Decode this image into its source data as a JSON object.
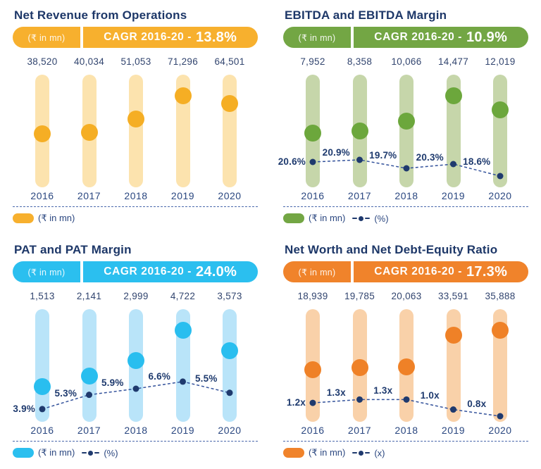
{
  "chart_data": [
    {
      "type": "bar",
      "title": "Net Revenue from Operations",
      "unit_label": "(₹ in mn)",
      "cagr_label": "CAGR 2016-20 -",
      "cagr_value": "13.8%",
      "categories": [
        "2016",
        "2017",
        "2018",
        "2019",
        "2020"
      ],
      "values": [
        38520,
        40034,
        51053,
        71296,
        64501
      ],
      "value_labels": [
        "38,520",
        "40,034",
        "51,053",
        "71,296",
        "64,501"
      ],
      "ylim": [
        0,
        82000
      ],
      "grid": false,
      "legend_position": "bottom-left",
      "line": null,
      "legend": [
        {
          "marker": "pill",
          "label": "(₹ in mn)"
        }
      ],
      "colors": {
        "accent": "#F7B02E",
        "bar": "#FCE3AE",
        "dot": "#F5AE24"
      }
    },
    {
      "type": "bar",
      "title": "EBITDA and EBITDA Margin",
      "unit_label": "(₹ in mn)",
      "cagr_label": "CAGR 2016-20 -",
      "cagr_value": "10.9%",
      "categories": [
        "2016",
        "2017",
        "2018",
        "2019",
        "2020"
      ],
      "values": [
        7952,
        8358,
        10066,
        14477,
        12019
      ],
      "value_labels": [
        "7,952",
        "8,358",
        "10,066",
        "14,477",
        "12,019"
      ],
      "ylim": [
        0,
        16650
      ],
      "grid": false,
      "legend_position": "bottom-left",
      "line": {
        "name": "EBITDA Margin",
        "values": [
          20.6,
          20.9,
          19.7,
          20.3,
          18.6
        ],
        "labels": [
          "20.6%",
          "20.9%",
          "19.7%",
          "20.3%",
          "18.6%"
        ],
        "ylim": [
          17.8,
          23.0
        ]
      },
      "legend": [
        {
          "marker": "pill",
          "label": "(₹ in mn)"
        },
        {
          "marker": "line",
          "label": "(%)"
        }
      ],
      "colors": {
        "accent": "#73A644",
        "bar": "#C6D6AA",
        "dot": "#6CA73C"
      }
    },
    {
      "type": "bar",
      "title": "PAT and PAT Margin",
      "unit_label": "(₹ in mn)",
      "cagr_label": "CAGR 2016-20 -",
      "cagr_value": "24.0%",
      "categories": [
        "2016",
        "2017",
        "2018",
        "2019",
        "2020"
      ],
      "values": [
        1513,
        2141,
        2999,
        4722,
        3573
      ],
      "value_labels": [
        "1,513",
        "2,141",
        "2,999",
        "4,722",
        "3,573"
      ],
      "ylim": [
        0,
        5450
      ],
      "grid": false,
      "legend_position": "bottom-left",
      "line": {
        "name": "PAT Margin",
        "values": [
          3.9,
          5.3,
          5.9,
          6.6,
          5.5
        ],
        "labels": [
          "3.9%",
          "5.3%",
          "5.9%",
          "6.6%",
          "5.5%"
        ],
        "ylim": [
          3.2,
          6.8
        ]
      },
      "legend": [
        {
          "marker": "pill",
          "label": "(₹ in mn)"
        },
        {
          "marker": "line",
          "label": "(%)"
        }
      ],
      "colors": {
        "accent": "#2BBFEF",
        "bar": "#B9E4F9",
        "dot": "#29BEEF"
      }
    },
    {
      "type": "bar",
      "title": "Net Worth and Net Debt-Equity Ratio",
      "unit_label": "(₹ in mn)",
      "cagr_label": "CAGR 2016-20 -",
      "cagr_value": "17.3%",
      "categories": [
        "2016",
        "2017",
        "2018",
        "2019",
        "2020"
      ],
      "values": [
        18939,
        19785,
        20063,
        33591,
        35888
      ],
      "value_labels": [
        "18,939",
        "19,785",
        "20,063",
        "33,591",
        "35,888"
      ],
      "ylim": [
        0,
        41300
      ],
      "grid": false,
      "legend_position": "bottom-left",
      "line": {
        "name": "Net Debt-Equity Ratio",
        "values": [
          1.2,
          1.3,
          1.3,
          1.0,
          0.8
        ],
        "labels": [
          "1.2x",
          "1.3x",
          "1.3x",
          "1.0x",
          "0.8x"
        ],
        "ylim": [
          0.8,
          1.9
        ]
      },
      "legend": [
        {
          "marker": "pill",
          "label": "(₹ in mn)"
        },
        {
          "marker": "line",
          "label": "(x)"
        }
      ],
      "colors": {
        "accent": "#F0832B",
        "bar": "#F9D1A9",
        "dot": "#EF8127"
      }
    }
  ],
  "ui_colors": {
    "title_text": "#1d3768",
    "axis_text": "#2a4780",
    "line_series": "#1f3a6e",
    "separator": "#4a68ac"
  }
}
